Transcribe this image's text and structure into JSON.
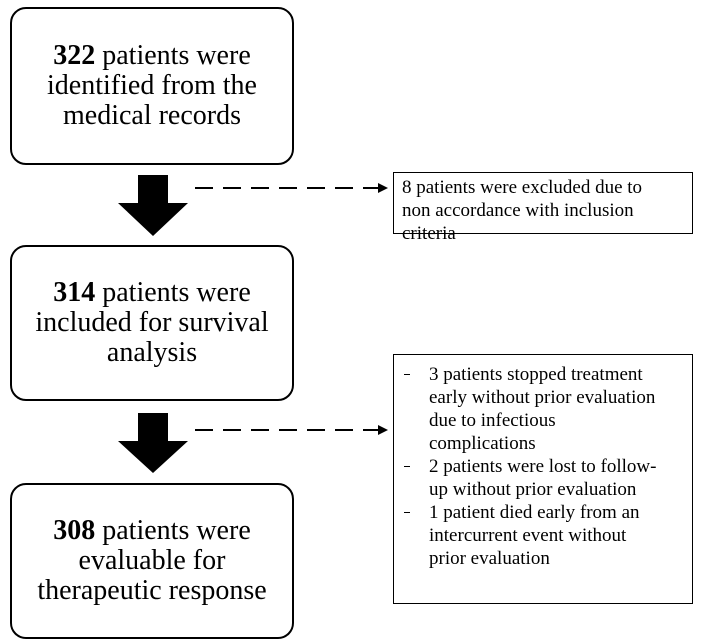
{
  "nodes": [
    {
      "number": "322",
      "lines": [
        "patients were",
        "identified from the",
        "medical records"
      ]
    },
    {
      "number": "314",
      "lines": [
        "patients were",
        "included for survival",
        "analysis"
      ]
    },
    {
      "number": "308",
      "lines": [
        "patients were",
        "evaluable for",
        "therapeutic response"
      ]
    }
  ],
  "exclusions": [
    {
      "lines": [
        "8 patients were excluded due to",
        "non accordance with inclusion",
        "criteria"
      ]
    },
    {
      "items": [
        [
          "3 patients stopped treatment",
          "early without prior evaluation",
          "due to infectious",
          "complications"
        ],
        [
          "2 patients were lost to follow-",
          "up without prior evaluation"
        ],
        [
          "1 patient died early from an",
          "intercurrent event without",
          "prior evaluation"
        ]
      ]
    }
  ]
}
